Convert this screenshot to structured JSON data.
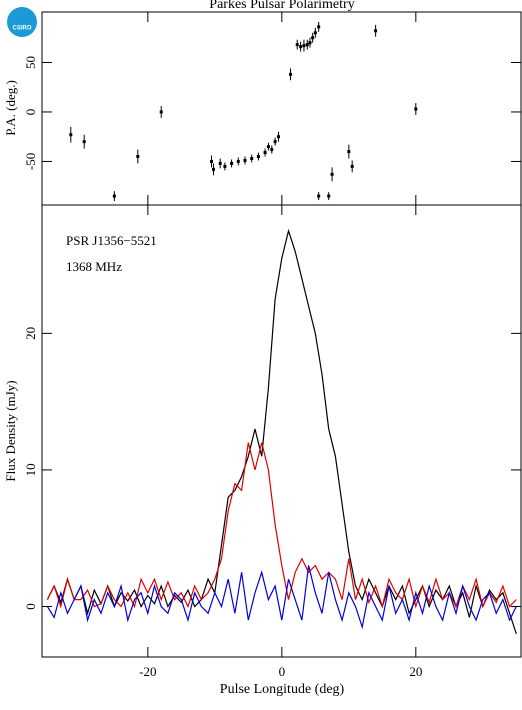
{
  "logo_text": "CSIRO",
  "chart_data": [
    {
      "type": "errorbar",
      "title": "Parkes Pulsar Polarimetry",
      "ylabel": "P.A. (deg.)",
      "x": [
        -31.5,
        -29.5,
        -25,
        -21.5,
        -18,
        -10.5,
        -10.2,
        -9.2,
        -8.5,
        -7.5,
        -6.5,
        -5.5,
        -4.5,
        -3.5,
        -2.5,
        -2,
        -1.5,
        -1,
        -0.5,
        1.3,
        2.3,
        2.8,
        3.3,
        3.8,
        4.2,
        4.6,
        5,
        5.5,
        5.5,
        7,
        7.5,
        10,
        10.5,
        14,
        20
      ],
      "values": [
        -23,
        -30,
        -85,
        -45,
        0,
        -50,
        -58,
        -52,
        -55,
        -52,
        -50,
        -49,
        -47,
        -45,
        -41,
        -35,
        -38,
        -30,
        -25,
        38,
        68,
        66,
        67,
        68,
        70,
        75,
        80,
        86,
        -85,
        -85,
        -63,
        -40,
        -55,
        82,
        3
      ],
      "errors": [
        8,
        7,
        5,
        7,
        6,
        6,
        6,
        5,
        4,
        4,
        4,
        4,
        4,
        4,
        4,
        4,
        4,
        4,
        5,
        6,
        5,
        5,
        6,
        5,
        5,
        5,
        5,
        5,
        4,
        4,
        7,
        7,
        6,
        6,
        6
      ],
      "color": "#000000",
      "xlim": [
        -35.8,
        35.7
      ],
      "xticks": [
        -20,
        0,
        20
      ],
      "ylim": [
        -94,
        101
      ],
      "yticks": [
        -50,
        0,
        50
      ]
    },
    {
      "type": "line",
      "xlabel": "Pulse Longitude (deg)",
      "ylabel": "Flux Density (mJy)",
      "annotations": [
        "PSR J1356−5521",
        "1368 MHz"
      ],
      "x": [
        -35,
        -34,
        -33,
        -32,
        -31,
        -30,
        -29,
        -28,
        -27,
        -26,
        -25,
        -24,
        -23,
        -22,
        -21,
        -20,
        -19,
        -18,
        -17,
        -16,
        -15,
        -14,
        -13,
        -12,
        -11,
        -10,
        -9,
        -8,
        -7,
        -6,
        -5,
        -4,
        -3,
        -2,
        -1,
        0,
        1,
        2,
        3,
        4,
        5,
        6,
        7,
        8,
        9,
        10,
        11,
        12,
        13,
        14,
        15,
        16,
        17,
        18,
        19,
        20,
        21,
        22,
        23,
        24,
        25,
        26,
        27,
        28,
        29,
        30,
        31,
        32,
        33,
        34,
        35
      ],
      "series": [
        {
          "color": "#000000",
          "values": [
            0.5,
            1.5,
            0.3,
            2,
            0.5,
            1.5,
            -0.5,
            1.2,
            0.2,
            1.5,
            0,
            1,
            0.4,
            1.2,
            0,
            0.8,
            0.2,
            1.5,
            0,
            0.8,
            0.3,
            1.2,
            0,
            0.5,
            2,
            1,
            4.5,
            8,
            8.5,
            9.5,
            11,
            13,
            11,
            16,
            22.5,
            25.5,
            27.5,
            26,
            24,
            22,
            20,
            17,
            13,
            11,
            7.5,
            4,
            1.5,
            0.5,
            2,
            1,
            0,
            1.5,
            0.5,
            1.5,
            -0.5,
            0.5,
            1.5,
            0,
            1.2,
            0.5,
            1.5,
            0,
            1,
            -0.8,
            1.5,
            0,
            1.2,
            0.5,
            1,
            -0.5,
            -2
          ]
        },
        {
          "color": "#e00000",
          "values": [
            0.5,
            1.5,
            0,
            2,
            0.5,
            0.5,
            1.2,
            0,
            0.2,
            1.5,
            0.5,
            0,
            1,
            0,
            2,
            1,
            2,
            0.5,
            1.8,
            0.5,
            1,
            0,
            1.5,
            0.5,
            1,
            2,
            3.5,
            7,
            9,
            8.5,
            12,
            10,
            12,
            10,
            6,
            3,
            0.5,
            2.5,
            3.5,
            2.5,
            3,
            2,
            2.5,
            2,
            0.5,
            3.5,
            0.5,
            2,
            0.3,
            1.5,
            0,
            2,
            1,
            0.5,
            2,
            0,
            1.5,
            0.3,
            2,
            0.5,
            1,
            0,
            1.5,
            0.5,
            2,
            0,
            1,
            0.3,
            1.5,
            0,
            0.5
          ]
        },
        {
          "color": "#0000e0",
          "values": [
            0,
            -0.8,
            1,
            -0.5,
            0.5,
            1.5,
            -1,
            0.5,
            -0.5,
            1,
            0,
            1.5,
            -1,
            0.5,
            1,
            -0.5,
            1.5,
            0,
            -0.5,
            1,
            0.5,
            -1,
            1,
            0,
            -0.5,
            1,
            0,
            2,
            -0.5,
            2.5,
            -1,
            1,
            2.5,
            0.5,
            1.5,
            -1,
            2,
            0.5,
            -1,
            3,
            1,
            -0.5,
            2.5,
            0.5,
            -1,
            1,
            0,
            -1.5,
            1,
            0,
            -1,
            1.5,
            -0.5,
            0.5,
            -1,
            1,
            -0.5,
            1.5,
            0,
            -1,
            1,
            -0.5,
            1.5,
            0,
            -1,
            0.5,
            1,
            -0.5,
            0.5,
            -1,
            0
          ]
        }
      ],
      "xlim": [
        -35.8,
        35.7
      ],
      "xticks": [
        -20,
        0,
        20
      ],
      "ylim": [
        -3.7,
        29.4
      ],
      "yticks": [
        0,
        10,
        20
      ]
    }
  ]
}
